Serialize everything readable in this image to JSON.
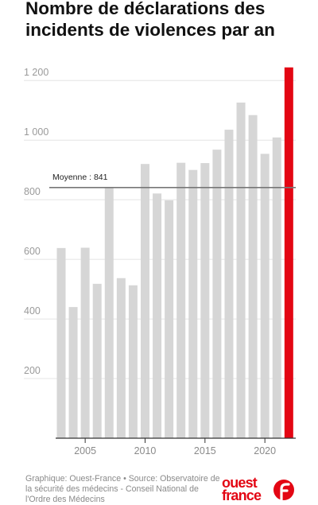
{
  "title": "Nombre de déclarations des incidents de violences par an",
  "credit": "Graphique: Ouest-France • Source: Observatoire de la sécurité des médecins - Conseil National de l'Ordre des Médecins",
  "brand": {
    "word1": "ouest",
    "word2": "france",
    "color": "#e30613"
  },
  "chart_data": {
    "type": "bar",
    "x": [
      2003,
      2004,
      2005,
      2006,
      2007,
      2008,
      2009,
      2010,
      2011,
      2012,
      2013,
      2014,
      2015,
      2016,
      2017,
      2018,
      2019,
      2020,
      2021,
      2022
    ],
    "values": [
      638,
      440,
      639,
      518,
      843,
      537,
      513,
      920,
      821,
      798,
      924,
      900,
      923,
      968,
      1035,
      1126,
      1084,
      954,
      1009,
      1244
    ],
    "xticks": [
      2005,
      2010,
      2015,
      2020
    ],
    "xtick_labels": [
      "2005",
      "2010",
      "2015",
      "2020"
    ],
    "yticks": [
      200,
      400,
      600,
      800,
      1000,
      1200
    ],
    "ytick_labels": [
      "200",
      "400",
      "600",
      "800",
      "1 000",
      "1 200"
    ],
    "ylim": [
      0,
      1250
    ],
    "grid": true,
    "highlight_index": 19,
    "bar_color": "#d6d6d6",
    "highlight_color": "#e30613",
    "average": {
      "value": 841,
      "label": "Moyenne : 841"
    }
  }
}
